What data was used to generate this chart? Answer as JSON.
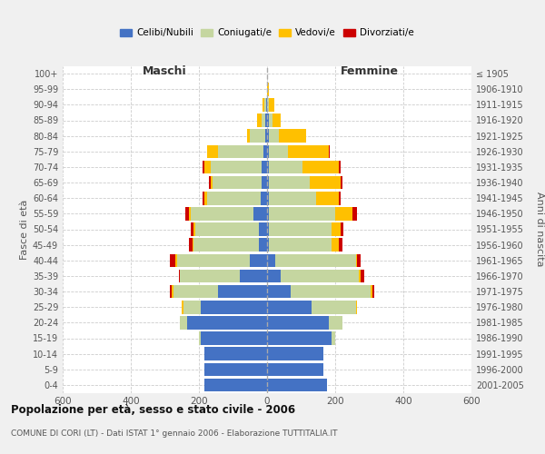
{
  "age_groups": [
    "0-4",
    "5-9",
    "10-14",
    "15-19",
    "20-24",
    "25-29",
    "30-34",
    "35-39",
    "40-44",
    "45-49",
    "50-54",
    "55-59",
    "60-64",
    "65-69",
    "70-74",
    "75-79",
    "80-84",
    "85-89",
    "90-94",
    "95-99",
    "100+"
  ],
  "birth_years": [
    "2001-2005",
    "1996-2000",
    "1991-1995",
    "1986-1990",
    "1981-1985",
    "1976-1980",
    "1971-1975",
    "1966-1970",
    "1961-1965",
    "1956-1960",
    "1951-1955",
    "1946-1950",
    "1941-1945",
    "1936-1940",
    "1931-1935",
    "1926-1930",
    "1921-1925",
    "1916-1920",
    "1911-1915",
    "1906-1910",
    "≤ 1905"
  ],
  "male_celibi": [
    185,
    185,
    185,
    195,
    235,
    195,
    145,
    80,
    50,
    25,
    25,
    40,
    20,
    15,
    15,
    10,
    5,
    5,
    3,
    0,
    0
  ],
  "male_coniugati": [
    0,
    0,
    0,
    5,
    20,
    50,
    130,
    175,
    215,
    190,
    185,
    185,
    155,
    145,
    150,
    135,
    45,
    10,
    5,
    0,
    0
  ],
  "male_vedovi": [
    0,
    0,
    0,
    0,
    0,
    5,
    5,
    0,
    5,
    5,
    5,
    5,
    10,
    5,
    20,
    30,
    10,
    15,
    5,
    0,
    0
  ],
  "male_divorziati": [
    0,
    0,
    0,
    0,
    0,
    0,
    5,
    5,
    15,
    10,
    10,
    10,
    5,
    5,
    5,
    0,
    0,
    0,
    0,
    0,
    0
  ],
  "female_celibi": [
    175,
    165,
    165,
    190,
    180,
    130,
    70,
    40,
    25,
    5,
    5,
    5,
    5,
    5,
    5,
    5,
    5,
    5,
    0,
    0,
    0
  ],
  "female_coniugati": [
    0,
    0,
    0,
    10,
    40,
    130,
    235,
    230,
    235,
    185,
    185,
    195,
    140,
    120,
    100,
    55,
    30,
    10,
    5,
    0,
    0
  ],
  "female_vedovi": [
    0,
    0,
    0,
    0,
    0,
    5,
    5,
    5,
    5,
    20,
    25,
    50,
    65,
    90,
    105,
    120,
    80,
    25,
    15,
    5,
    0
  ],
  "female_divorziati": [
    0,
    0,
    0,
    0,
    0,
    0,
    5,
    10,
    10,
    10,
    10,
    15,
    5,
    5,
    5,
    5,
    0,
    0,
    0,
    0,
    0
  ],
  "color_celibi": "#4472c4",
  "color_coniugati": "#c5d6a0",
  "color_vedovi": "#ffc000",
  "color_divorziati": "#cc0000",
  "title": "Popolazione per età, sesso e stato civile - 2006",
  "subtitle": "COMUNE DI CORI (LT) - Dati ISTAT 1° gennaio 2006 - Elaborazione TUTTITALIA.IT",
  "xlabel_left": "Maschi",
  "xlabel_right": "Femmine",
  "ylabel_left": "Fasce di età",
  "ylabel_right": "Anni di nascita",
  "xlim": 600,
  "bg_color": "#f0f0f0",
  "plot_bg_color": "#ffffff",
  "grid_color": "#cccccc"
}
